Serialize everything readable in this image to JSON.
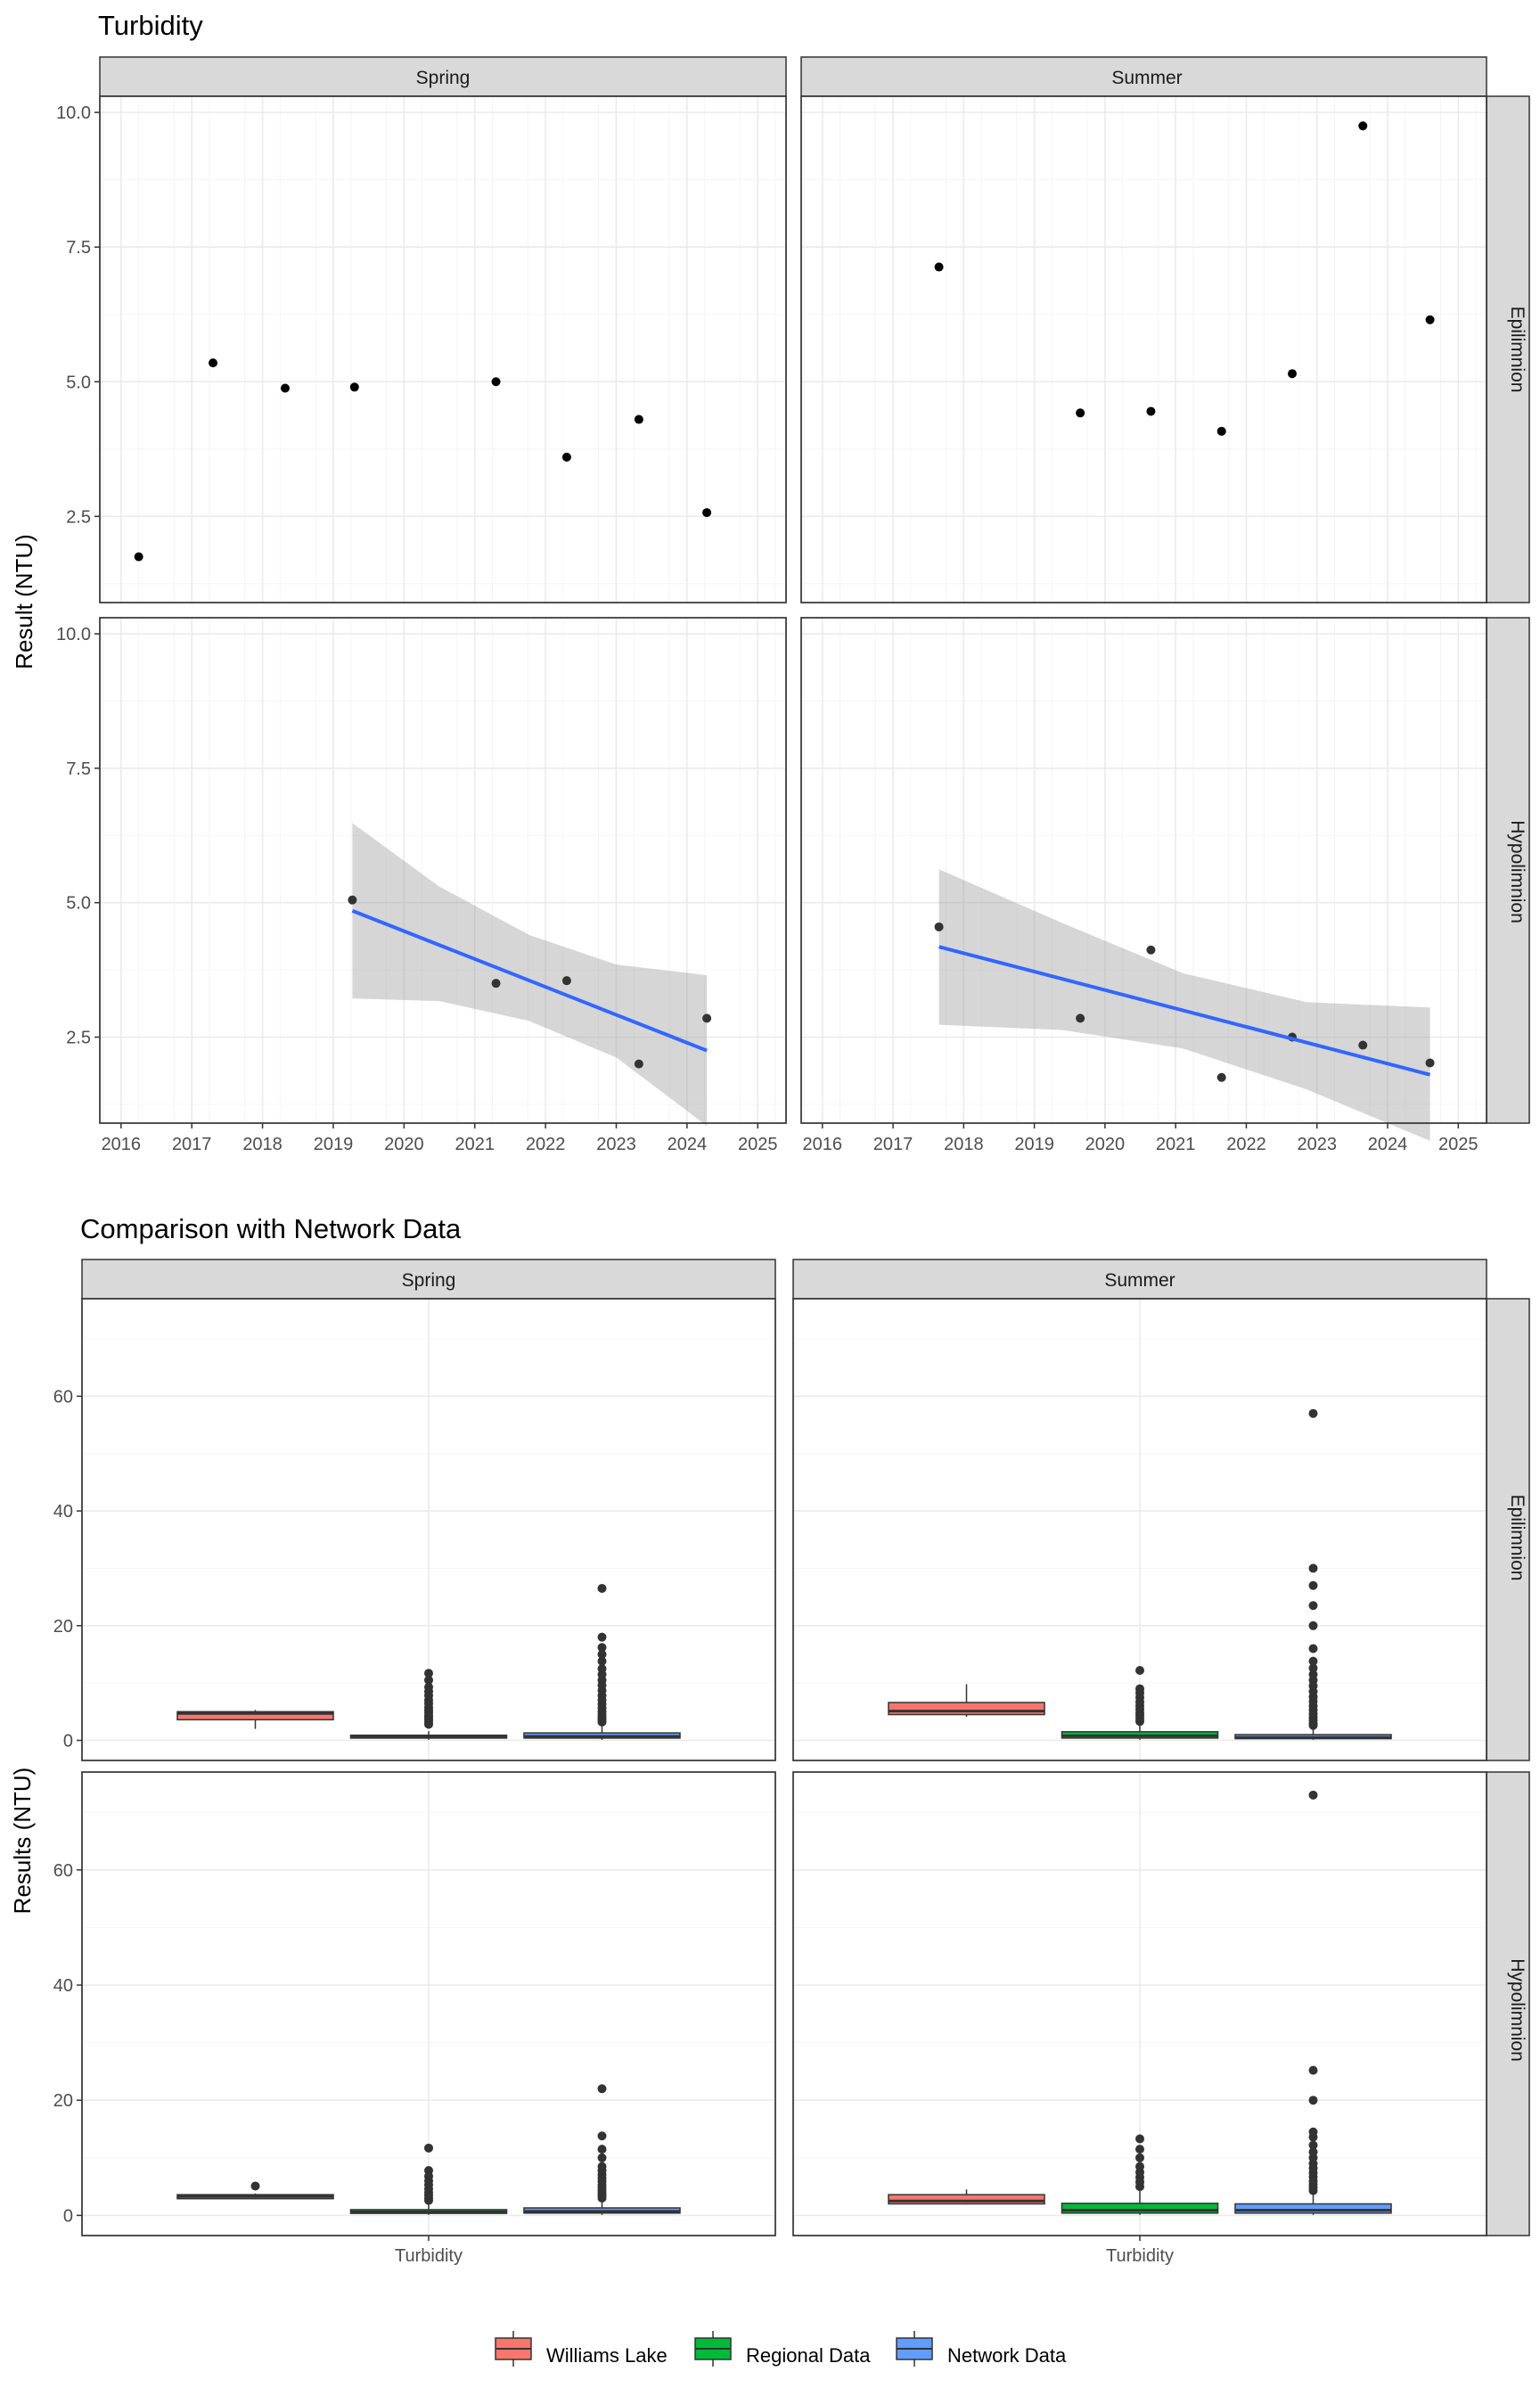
{
  "chart_data": [
    {
      "type": "scatter",
      "title": "Turbidity",
      "xlabel": "",
      "ylabel": "Result (NTU)",
      "xlim": [
        2015.7,
        2025.4
      ],
      "ylim": [
        0.9,
        10.3
      ],
      "x_ticks": [
        2016,
        2017,
        2018,
        2019,
        2020,
        2021,
        2022,
        2023,
        2024,
        2025
      ],
      "y_ticks": [
        2.5,
        5.0,
        7.5,
        10.0
      ],
      "y_tick_labels": [
        "2.5",
        "5.0",
        "7.5",
        "10.0"
      ],
      "column_facets": [
        "Spring",
        "Summer"
      ],
      "row_facets": [
        "Epilimnion",
        "Hypolimnion"
      ],
      "panels": [
        {
          "col": "Spring",
          "row": "Epilimnion",
          "points": [
            [
              2016.25,
              1.75
            ],
            [
              2017.3,
              5.35
            ],
            [
              2018.32,
              4.88
            ],
            [
              2019.3,
              4.9
            ],
            [
              2021.3,
              5.0
            ],
            [
              2022.3,
              3.6
            ],
            [
              2023.32,
              4.3
            ],
            [
              2024.28,
              2.57
            ]
          ]
        },
        {
          "col": "Summer",
          "row": "Epilimnion",
          "points": [
            [
              2017.65,
              7.13
            ],
            [
              2019.65,
              4.42
            ],
            [
              2020.65,
              4.45
            ],
            [
              2021.65,
              4.08
            ],
            [
              2022.65,
              5.15
            ],
            [
              2023.65,
              9.75
            ],
            [
              2024.6,
              6.15
            ]
          ]
        },
        {
          "col": "Spring",
          "row": "Hypolimnion",
          "points": [
            [
              2019.27,
              5.05
            ],
            [
              2021.3,
              3.5
            ],
            [
              2022.3,
              3.55
            ],
            [
              2023.32,
              2.0
            ],
            [
              2024.28,
              2.85
            ]
          ],
          "trend": {
            "x": [
              2019.27,
              2024.28
            ],
            "y": [
              4.85,
              2.25
            ],
            "ci_x": [
              2019.27,
              2020.5,
              2021.77,
              2023.0,
              2024.28
            ],
            "ci_lower": [
              3.22,
              3.17,
              2.8,
              2.12,
              0.85
            ],
            "ci_upper": [
              6.48,
              5.3,
              4.4,
              3.85,
              3.65
            ]
          }
        },
        {
          "col": "Summer",
          "row": "Hypolimnion",
          "points": [
            [
              2017.65,
              4.55
            ],
            [
              2019.65,
              2.85
            ],
            [
              2020.65,
              4.12
            ],
            [
              2021.65,
              1.75
            ],
            [
              2022.65,
              2.5
            ],
            [
              2023.65,
              2.35
            ],
            [
              2024.6,
              2.02
            ]
          ],
          "trend": {
            "x": [
              2017.65,
              2024.6
            ],
            "y": [
              4.18,
              1.8
            ],
            "ci_x": [
              2017.65,
              2019.4,
              2021.1,
              2022.85,
              2024.6
            ],
            "ci_lower": [
              2.73,
              2.63,
              2.29,
              1.53,
              0.57
            ],
            "ci_upper": [
              5.62,
              4.62,
              3.69,
              3.15,
              3.05
            ]
          }
        }
      ]
    },
    {
      "type": "box",
      "title": "Comparison with Network Data",
      "xlabel": "",
      "ylabel": "Results (NTU)",
      "categories": [
        "Turbidity"
      ],
      "ylim": [
        -3.5,
        77
      ],
      "y_ticks": [
        0,
        20,
        40,
        60
      ],
      "y_tick_labels": [
        "0",
        "20",
        "40",
        "60"
      ],
      "column_facets": [
        "Spring",
        "Summer"
      ],
      "row_facets": [
        "Epilimnion",
        "Hypolimnion"
      ],
      "series": [
        {
          "name": "Williams Lake",
          "color": "#f8766d"
        },
        {
          "name": "Regional Data",
          "color": "#00ba38"
        },
        {
          "name": "Network Data",
          "color": "#619cff"
        }
      ],
      "panels": [
        {
          "col": "Spring",
          "row": "Epilimnion",
          "boxes": [
            {
              "series": "Williams Lake",
              "lower": 2.0,
              "q1": 3.6,
              "median": 4.7,
              "q3": 5.0,
              "upper": 5.3,
              "outliers": []
            },
            {
              "series": "Regional Data",
              "lower": 0.1,
              "q1": 0.4,
              "median": 0.6,
              "q3": 0.9,
              "upper": 1.6,
              "outliers": [
                2.8,
                3.2,
                3.6,
                4.0,
                4.4,
                4.9,
                5.3,
                5.8,
                6.4,
                7.0,
                7.8,
                8.5,
                9.3,
                10.5,
                11.7
              ]
            },
            {
              "series": "Network Data",
              "lower": 0.1,
              "q1": 0.4,
              "median": 0.7,
              "q3": 1.3,
              "upper": 2.5,
              "outliers": [
                3.2,
                3.6,
                4.0,
                4.5,
                5.0,
                5.6,
                6.3,
                7.0,
                7.8,
                8.7,
                9.6,
                10.5,
                11.5,
                12.5,
                13.8,
                15.0,
                16.2,
                18.0,
                26.5
              ]
            }
          ]
        },
        {
          "col": "Summer",
          "row": "Epilimnion",
          "boxes": [
            {
              "series": "Williams Lake",
              "lower": 4.1,
              "q1": 4.5,
              "median": 5.1,
              "q3": 6.6,
              "upper": 9.8,
              "outliers": []
            },
            {
              "series": "Regional Data",
              "lower": 0.1,
              "q1": 0.4,
              "median": 0.8,
              "q3": 1.5,
              "upper": 2.8,
              "outliers": [
                3.3,
                3.8,
                4.3,
                4.8,
                5.4,
                6.0,
                6.7,
                7.5,
                8.3,
                9.0,
                12.2
              ]
            },
            {
              "series": "Network Data",
              "lower": 0.1,
              "q1": 0.3,
              "median": 0.5,
              "q3": 1.0,
              "upper": 2.0,
              "outliers": [
                2.6,
                3.0,
                3.5,
                4.0,
                4.6,
                5.3,
                6.0,
                6.8,
                7.6,
                8.5,
                9.5,
                10.5,
                11.5,
                12.6,
                13.8,
                16.0,
                20.0,
                23.5,
                27.0,
                30.0,
                57.0
              ]
            }
          ]
        },
        {
          "col": "Spring",
          "row": "Hypolimnion",
          "boxes": [
            {
              "series": "Williams Lake",
              "lower": 2.8,
              "q1": 2.9,
              "median": 3.3,
              "q3": 3.6,
              "upper": 3.8,
              "outliers": [
                5.1
              ]
            },
            {
              "series": "Regional Data",
              "lower": 0.1,
              "q1": 0.35,
              "median": 0.6,
              "q3": 1.0,
              "upper": 2.0,
              "outliers": [
                2.6,
                3.0,
                3.5,
                4.0,
                4.6,
                5.3,
                6.0,
                6.8,
                7.8,
                11.7
              ]
            },
            {
              "series": "Network Data",
              "lower": 0.1,
              "q1": 0.4,
              "median": 0.7,
              "q3": 1.3,
              "upper": 2.5,
              "outliers": [
                3.0,
                3.4,
                3.8,
                4.3,
                4.8,
                5.3,
                5.9,
                6.5,
                7.1,
                7.8,
                8.5,
                10.0,
                11.5,
                13.8,
                22.0
              ]
            }
          ]
        },
        {
          "col": "Summer",
          "row": "Hypolimnion",
          "boxes": [
            {
              "series": "Williams Lake",
              "lower": 1.9,
              "q1": 2.0,
              "median": 2.5,
              "q3": 3.6,
              "upper": 4.5,
              "outliers": []
            },
            {
              "series": "Regional Data",
              "lower": 0.1,
              "q1": 0.4,
              "median": 0.9,
              "q3": 2.1,
              "upper": 4.3,
              "outliers": [
                5.0,
                5.8,
                6.6,
                7.5,
                8.5,
                10.0,
                11.5,
                13.3
              ]
            },
            {
              "series": "Network Data",
              "lower": 0.1,
              "q1": 0.4,
              "median": 0.9,
              "q3": 2.0,
              "upper": 3.8,
              "outliers": [
                4.3,
                4.8,
                5.4,
                6.0,
                6.7,
                7.4,
                8.2,
                9.0,
                10.0,
                11.0,
                12.2,
                13.6,
                14.5,
                20.0,
                25.2,
                73.0
              ]
            }
          ]
        }
      ]
    }
  ],
  "legend": {
    "position": "bottom",
    "items": [
      {
        "label": "Williams Lake",
        "color": "#f8766d"
      },
      {
        "label": "Regional Data",
        "color": "#00ba38"
      },
      {
        "label": "Network Data",
        "color": "#619cff"
      }
    ]
  }
}
